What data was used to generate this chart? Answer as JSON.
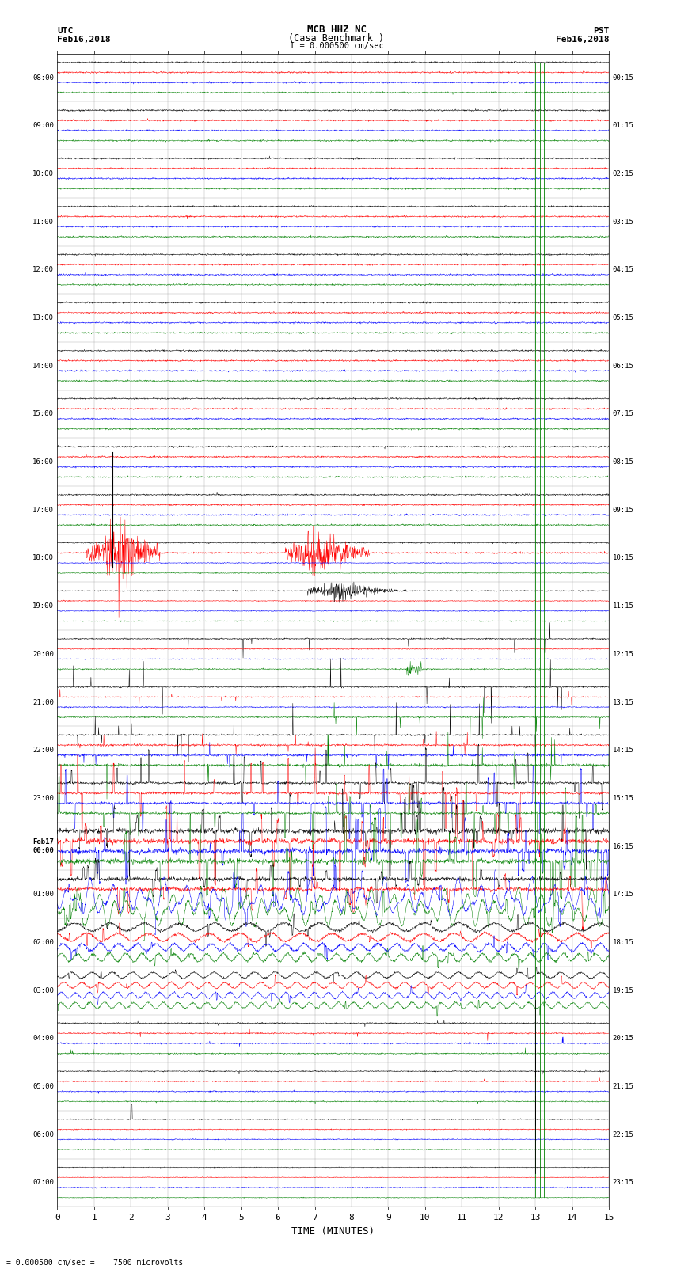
{
  "title_line1": "MCB HHZ NC",
  "title_line2": "(Casa Benchmark )",
  "scale_label": "I = 0.000500 cm/sec",
  "bottom_label": "= 0.000500 cm/sec =    7500 microvolts",
  "xlabel": "TIME (MINUTES)",
  "left_header_line1": "UTC",
  "left_header_line2": "Feb16,2018",
  "right_header_line1": "PST",
  "right_header_line2": "Feb16,2018",
  "utc_labels": [
    "08:00",
    "09:00",
    "10:00",
    "11:00",
    "12:00",
    "13:00",
    "14:00",
    "15:00",
    "16:00",
    "17:00",
    "18:00",
    "19:00",
    "20:00",
    "21:00",
    "22:00",
    "23:00",
    "Feb17\n00:00",
    "01:00",
    "02:00",
    "03:00",
    "04:00",
    "05:00",
    "06:00",
    "07:00"
  ],
  "pst_labels": [
    "00:15",
    "01:15",
    "02:15",
    "03:15",
    "04:15",
    "05:15",
    "06:15",
    "07:15",
    "08:15",
    "09:15",
    "10:15",
    "11:15",
    "12:15",
    "13:15",
    "14:15",
    "15:15",
    "16:15",
    "17:15",
    "18:15",
    "19:15",
    "20:15",
    "21:15",
    "22:15",
    "23:15"
  ],
  "num_rows": 24,
  "minutes": 15,
  "colors": [
    "black",
    "red",
    "blue",
    "green"
  ],
  "bg_color": "white",
  "figsize": [
    8.5,
    16.13
  ],
  "dpi": 100
}
